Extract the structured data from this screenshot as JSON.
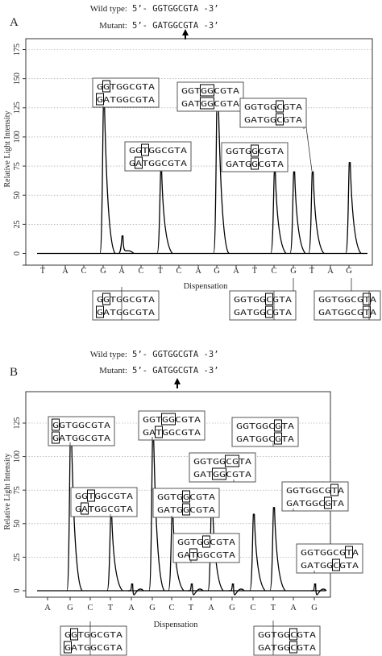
{
  "chart_data": [
    {
      "type": "line",
      "panel_label": "A",
      "header_wild_label": "Wild type:",
      "header_wild_seq": "5’- GGTGGCGTA -3’",
      "header_mutant_label": "Mutant:",
      "header_mutant_seq": "5’- GATGGCGTA -3’",
      "ylabel": "Relative Light Intensity",
      "xlabel": "Dispensation",
      "ylim": [
        -5,
        180
      ],
      "yticks": [
        0,
        25,
        50,
        75,
        100,
        125,
        150,
        175
      ],
      "ytick_labels": [
        "0",
        "25",
        "50",
        "75",
        "100",
        "125",
        "150",
        "175"
      ],
      "grid": "horizontal dotted",
      "categories": [
        "T",
        "A",
        "C",
        "G",
        "A",
        "C",
        "T",
        "C",
        "A",
        "G",
        "A",
        "T",
        "C",
        "G",
        "T",
        "A",
        "G"
      ],
      "values": [
        0,
        0,
        0,
        128,
        15,
        0,
        70,
        0,
        0,
        140,
        0,
        0,
        70,
        70,
        70,
        0,
        78
      ],
      "annotations": [
        {
          "line1": "GGTGGCGTA",
          "line2": "GATGGCGTA"
        },
        {
          "line1": "GGTGGCGTA",
          "line2": "GATGGCGTA"
        },
        {
          "line1": "GGTGGCGTA",
          "line2": "GATGGCGTA"
        },
        {
          "line1": "GGTGGCGTA",
          "line2": "GATGGCGTA"
        },
        {
          "line1": "GGTGGCGTA",
          "line2": "GATGGCGTA"
        },
        {
          "line1": "GGTGGCGTA",
          "line2": "GATGGCGTA"
        },
        {
          "line1": "GGTGGCGTA",
          "line2": "GATGGCGTA"
        },
        {
          "line1": "GGTGGCGTA",
          "line2": "GATGGCGTA"
        }
      ]
    },
    {
      "type": "line",
      "panel_label": "B",
      "header_wild_label": "Wild type:",
      "header_wild_seq": "5’- GGTGGCGTA -3’",
      "header_mutant_label": "Mutant:",
      "header_mutant_seq": "5’- GATGGCGTA -3’",
      "ylabel": "Relative Light Intensity",
      "xlabel": "Dispensation",
      "ylim": [
        -5,
        150
      ],
      "yticks": [
        0,
        25,
        50,
        75,
        100,
        125
      ],
      "ytick_labels": [
        "0",
        "25",
        "50",
        "75",
        "100",
        "125"
      ],
      "grid": "horizontal dotted",
      "categories": [
        "A",
        "G",
        "C",
        "T",
        "A",
        "G",
        "C",
        "T",
        "A",
        "G",
        "C",
        "T",
        "A",
        "G"
      ],
      "values": [
        0,
        118,
        0,
        57,
        5,
        115,
        57,
        5,
        67,
        5,
        57,
        62,
        0,
        5
      ],
      "annotations": [
        {
          "line1": "GGTGGCGTA",
          "line2": "GATGGCGTA"
        },
        {
          "line1": "GGTGGCGTA",
          "line2": "GATGGCGTA"
        },
        {
          "line1": "GGTGGCGTA",
          "line2": "GATGGCGTA"
        },
        {
          "line1": "GGTGGCGTA",
          "line2": "GATGGCGTA"
        },
        {
          "line1": "GGTGGCGTA",
          "line2": "GATGGCGTA"
        },
        {
          "line1": "GGTGGCGTA",
          "line2": "GATGGCGTA"
        },
        {
          "line1": "GGTGGCGTA",
          "line2": "GATGGCGTA"
        },
        {
          "line1": "GGTGGCGTA",
          "line2": "GATGGCGTA"
        },
        {
          "line1": "GGTGGCGTA",
          "line2": "GATGGCGTA"
        },
        {
          "line1": "GGTGGCGTA",
          "line2": "GATGGCGTA"
        },
        {
          "line1": "GGTGGCGTA",
          "line2": "GATGGCGTA"
        }
      ]
    }
  ]
}
